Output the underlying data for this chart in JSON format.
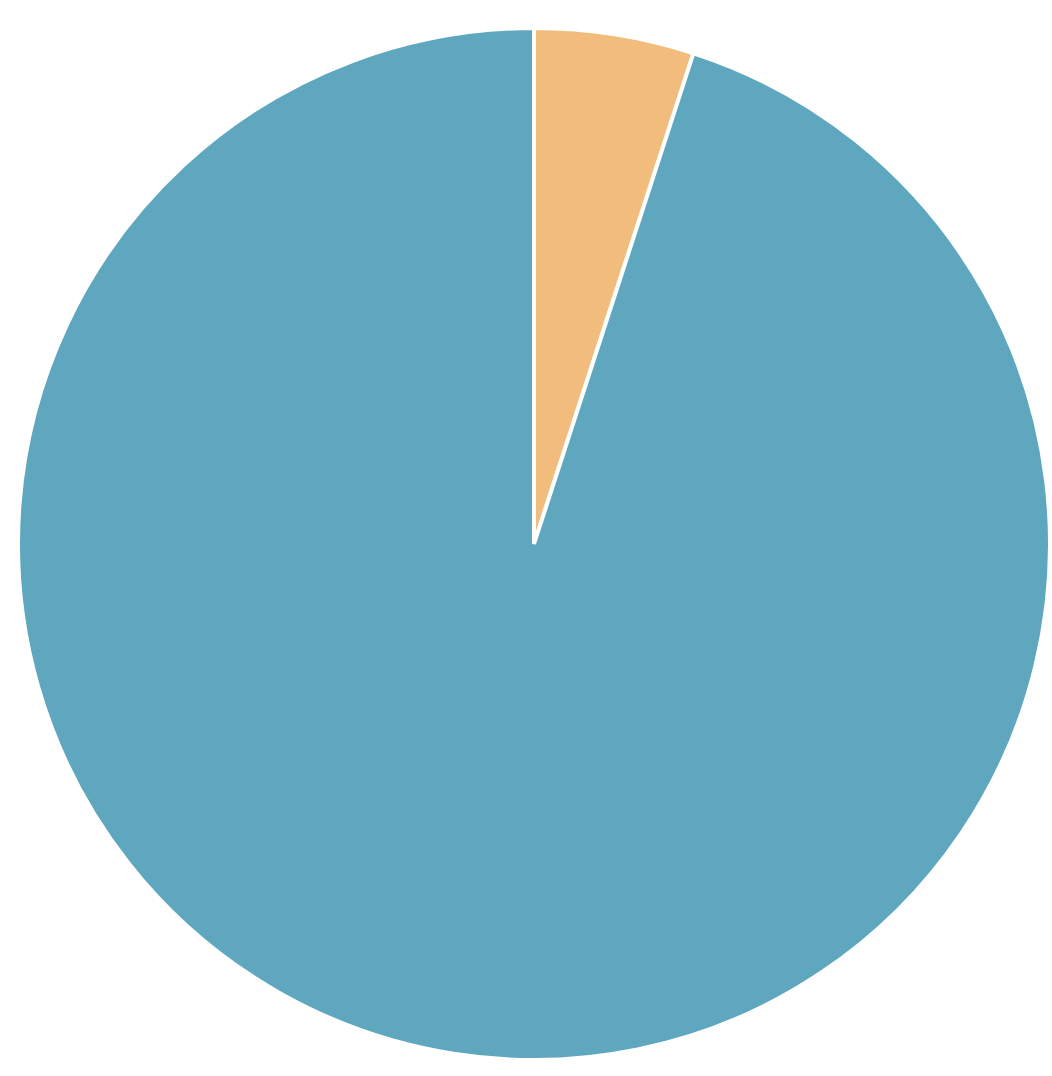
{
  "chart_data": {
    "type": "pie",
    "categories": [
      null,
      null
    ],
    "values": [
      5,
      95
    ],
    "colors": [
      "#f2bd7c",
      "#5ea7bf"
    ],
    "legend": false
  }
}
